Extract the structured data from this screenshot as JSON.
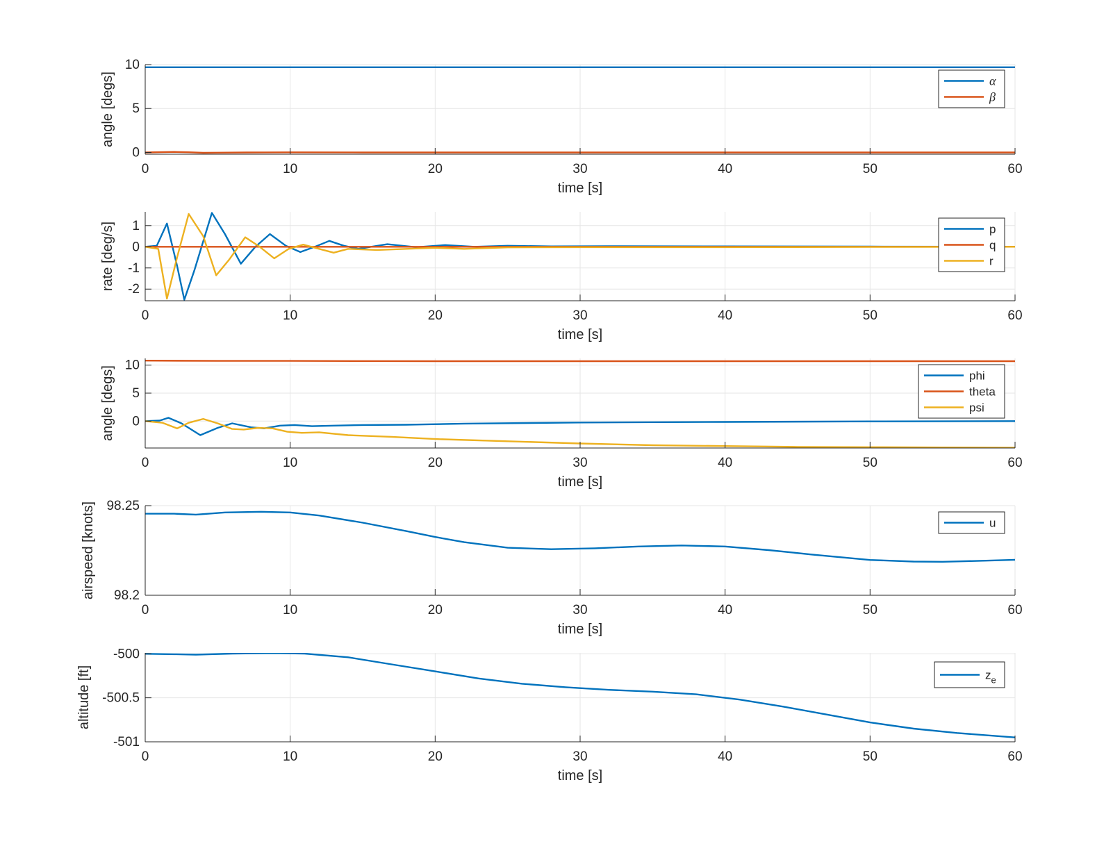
{
  "chart_data": [
    {
      "type": "line",
      "xlabel": "time [s]",
      "ylabel": "angle [degs]",
      "xlim": [
        0,
        60
      ],
      "ylim": [
        -0.2,
        10
      ],
      "xticks": [
        0,
        10,
        20,
        30,
        40,
        50,
        60
      ],
      "yticks": [
        0,
        5,
        10
      ],
      "ytick_labels": [
        "0",
        "5",
        "10"
      ],
      "grid": true,
      "legend": "top-right",
      "series": [
        {
          "name": "α",
          "symbol": true,
          "color": "#0072BD",
          "x": [
            0,
            60
          ],
          "y": [
            9.7,
            9.7
          ]
        },
        {
          "name": "β",
          "symbol": true,
          "color": "#D95319",
          "x": [
            0,
            1,
            2,
            3,
            4,
            5,
            7,
            10,
            15,
            20,
            30,
            40,
            50,
            60
          ],
          "y": [
            0,
            0.03,
            0.06,
            0.02,
            -0.04,
            -0.03,
            0.0,
            0.01,
            0.0,
            0.0,
            0.0,
            0.0,
            0.0,
            0.0
          ]
        }
      ]
    },
    {
      "type": "line",
      "xlabel": "time [s]",
      "ylabel": "rate [deg/s]",
      "xlim": [
        0,
        60
      ],
      "ylim": [
        -2.55,
        1.65
      ],
      "xticks": [
        0,
        10,
        20,
        30,
        40,
        50,
        60
      ],
      "yticks": [
        -2,
        -1,
        0,
        1
      ],
      "ytick_labels": [
        "-2",
        "-1",
        "0",
        "1"
      ],
      "grid": true,
      "legend": "top-right",
      "series": [
        {
          "name": "p",
          "color": "#0072BD",
          "x": [
            0,
            0.8,
            1.5,
            2.2,
            2.7,
            3.4,
            4.6,
            5.5,
            6.6,
            7.6,
            8.6,
            9.7,
            10.7,
            11.7,
            12.7,
            13.7,
            14.7,
            16.7,
            18.7,
            20.7,
            22.7,
            25,
            28,
            32,
            40,
            50,
            60
          ],
          "y": [
            0,
            0.05,
            1.1,
            -0.9,
            -2.5,
            -1.1,
            1.6,
            0.6,
            -0.8,
            0.0,
            0.6,
            0.05,
            -0.25,
            0.0,
            0.28,
            0.05,
            -0.1,
            0.12,
            -0.02,
            0.08,
            0.0,
            0.05,
            0.02,
            0.03,
            0.02,
            0.01,
            0.0
          ]
        },
        {
          "name": "q",
          "color": "#D95319",
          "x": [
            0,
            60
          ],
          "y": [
            0,
            0
          ]
        },
        {
          "name": "r",
          "color": "#EDB120",
          "x": [
            0,
            0.9,
            1.5,
            2.2,
            3.0,
            4.0,
            4.9,
            5.8,
            6.9,
            7.9,
            8.9,
            9.9,
            10.9,
            12.0,
            13.0,
            14.0,
            16.0,
            18.0,
            20.0,
            22.0,
            25,
            30,
            40,
            50,
            60
          ],
          "y": [
            0,
            -0.1,
            -2.45,
            -0.5,
            1.55,
            0.5,
            -1.35,
            -0.6,
            0.45,
            0.0,
            -0.55,
            -0.1,
            0.1,
            -0.1,
            -0.28,
            -0.1,
            -0.15,
            -0.1,
            -0.05,
            -0.1,
            -0.03,
            -0.02,
            -0.02,
            -0.01,
            0.0
          ]
        }
      ]
    },
    {
      "type": "line",
      "xlabel": "time [s]",
      "ylabel": "angle [degs]",
      "xlim": [
        0,
        60
      ],
      "ylim": [
        -4.8,
        11.2
      ],
      "xticks": [
        0,
        10,
        20,
        30,
        40,
        50,
        60
      ],
      "yticks": [
        0,
        5,
        10
      ],
      "ytick_labels": [
        "0",
        "5",
        "10"
      ],
      "grid": true,
      "legend": "top-right",
      "series": [
        {
          "name": "phi",
          "color": "#0072BD",
          "x": [
            0,
            1,
            1.6,
            2.5,
            3.8,
            5.0,
            6.0,
            7.3,
            8.2,
            9.3,
            10.3,
            11.5,
            13.0,
            15.0,
            18.0,
            22.0,
            30.0,
            40.0,
            50.0,
            60.0
          ],
          "y": [
            0,
            0.1,
            0.6,
            -0.4,
            -2.5,
            -1.2,
            -0.4,
            -1.1,
            -1.3,
            -0.8,
            -0.7,
            -0.9,
            -0.8,
            -0.7,
            -0.65,
            -0.45,
            -0.25,
            -0.15,
            -0.05,
            0.0
          ]
        },
        {
          "name": "theta",
          "color": "#D95319",
          "x": [
            0,
            5,
            10,
            20,
            30,
            40,
            50,
            60
          ],
          "y": [
            10.8,
            10.75,
            10.75,
            10.7,
            10.7,
            10.7,
            10.7,
            10.7
          ]
        },
        {
          "name": "psi",
          "color": "#EDB120",
          "x": [
            0,
            1.2,
            2.2,
            3.0,
            4.0,
            5.0,
            6.0,
            6.8,
            7.8,
            8.8,
            9.8,
            10.8,
            12.0,
            14.0,
            17.0,
            20.0,
            25.0,
            30.0,
            35.0,
            40.0,
            45.0,
            50.0,
            55.0,
            60.0
          ],
          "y": [
            0,
            -0.3,
            -1.3,
            -0.3,
            0.4,
            -0.4,
            -1.4,
            -1.5,
            -1.2,
            -1.3,
            -1.9,
            -2.1,
            -2.0,
            -2.5,
            -2.8,
            -3.2,
            -3.6,
            -4.0,
            -4.3,
            -4.45,
            -4.6,
            -4.65,
            -4.7,
            -4.75
          ]
        }
      ]
    },
    {
      "type": "line",
      "xlabel": "time [s]",
      "ylabel": "airspeed [knots]",
      "xlim": [
        0,
        60
      ],
      "ylim": [
        98.2,
        98.25
      ],
      "xticks": [
        0,
        10,
        20,
        30,
        40,
        50,
        60
      ],
      "yticks": [
        98.2,
        98.25
      ],
      "ytick_labels": [
        "98.2",
        "98.25"
      ],
      "grid": true,
      "legend": "top-right",
      "series": [
        {
          "name": "u",
          "color": "#0072BD",
          "x": [
            0,
            2,
            3.5,
            5.5,
            8,
            10,
            12,
            15,
            18,
            20,
            22,
            25,
            28,
            31,
            34,
            37,
            40,
            43,
            46,
            50,
            53,
            55,
            58,
            60
          ],
          "y": [
            98.2455,
            98.2455,
            98.245,
            98.2462,
            98.2466,
            98.2462,
            98.2445,
            98.2405,
            98.2358,
            98.2325,
            98.2296,
            98.2265,
            98.2257,
            98.2262,
            98.2272,
            98.2278,
            98.2272,
            98.2252,
            98.2227,
            98.2197,
            98.2188,
            98.2187,
            98.2193,
            98.2198
          ]
        }
      ]
    },
    {
      "type": "line",
      "xlabel": "time [s]",
      "ylabel": "altitude [ft]",
      "xlim": [
        0,
        60
      ],
      "ylim": [
        -501,
        -499.99
      ],
      "xticks": [
        0,
        10,
        20,
        30,
        40,
        50,
        60
      ],
      "yticks": [
        -501,
        -500.5,
        -500
      ],
      "ytick_labels": [
        "-501",
        "-500.5",
        "-500"
      ],
      "grid": true,
      "legend": "top-right",
      "series": [
        {
          "name": "z",
          "subscript": "e",
          "color": "#0072BD",
          "x": [
            0,
            2,
            3.5,
            6,
            9,
            11,
            14,
            17,
            20,
            23,
            26,
            29,
            32,
            35,
            38,
            41,
            44,
            47,
            50,
            53,
            56,
            60
          ],
          "y": [
            -500.0,
            -500.005,
            -500.01,
            -499.998,
            -499.992,
            -499.998,
            -500.04,
            -500.12,
            -500.2,
            -500.28,
            -500.34,
            -500.38,
            -500.41,
            -500.43,
            -500.46,
            -500.52,
            -500.6,
            -500.69,
            -500.78,
            -500.85,
            -500.9,
            -500.95
          ]
        }
      ]
    }
  ]
}
